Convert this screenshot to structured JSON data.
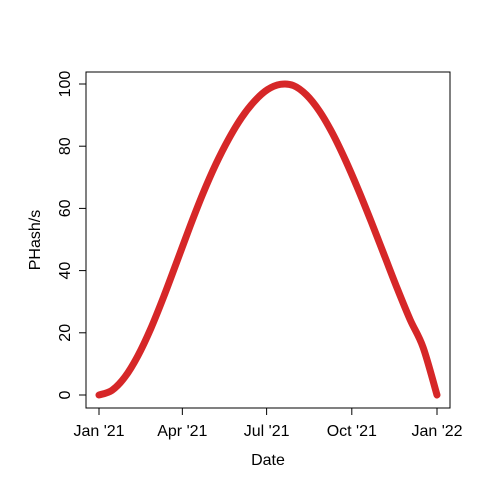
{
  "chart_data": {
    "type": "line",
    "title": "",
    "xlabel": "Date",
    "ylabel": "PHash/s",
    "x_ticks": [
      "Jan '21",
      "Apr '21",
      "Jul '21",
      "Oct '21",
      "Jan '22"
    ],
    "x_tick_dates": [
      "2021-01-01",
      "2021-04-01",
      "2021-07-01",
      "2021-10-01",
      "2022-01-01"
    ],
    "y_ticks": [
      0,
      20,
      40,
      60,
      80,
      100
    ],
    "xlim": [
      "2021-01-01",
      "2022-01-01"
    ],
    "ylim": [
      0,
      100
    ],
    "grid": false,
    "legend": "none",
    "line_color": "#d62728",
    "series": [
      {
        "name": "",
        "x": [
          "2021-01-01",
          "2021-01-15",
          "2021-01-29",
          "2021-02-12",
          "2021-02-26",
          "2021-03-12",
          "2021-03-26",
          "2021-04-09",
          "2021-04-23",
          "2021-05-07",
          "2021-05-21",
          "2021-06-04",
          "2021-06-18",
          "2021-07-02",
          "2021-07-16",
          "2021-07-30",
          "2021-08-13",
          "2021-08-27",
          "2021-09-10",
          "2021-09-24",
          "2021-10-08",
          "2021-10-22",
          "2021-11-05",
          "2021-11-19",
          "2021-12-03",
          "2021-12-17",
          "2022-01-01"
        ],
        "y": [
          0.0,
          1.5,
          5.8,
          12.6,
          21.4,
          31.7,
          42.8,
          54.0,
          64.6,
          74.1,
          82.3,
          89.2,
          94.5,
          98.2,
          99.9,
          99.5,
          96.5,
          91.3,
          84.2,
          75.6,
          66.0,
          55.7,
          45.0,
          34.3,
          24.2,
          15.3,
          0.0
        ]
      }
    ]
  }
}
